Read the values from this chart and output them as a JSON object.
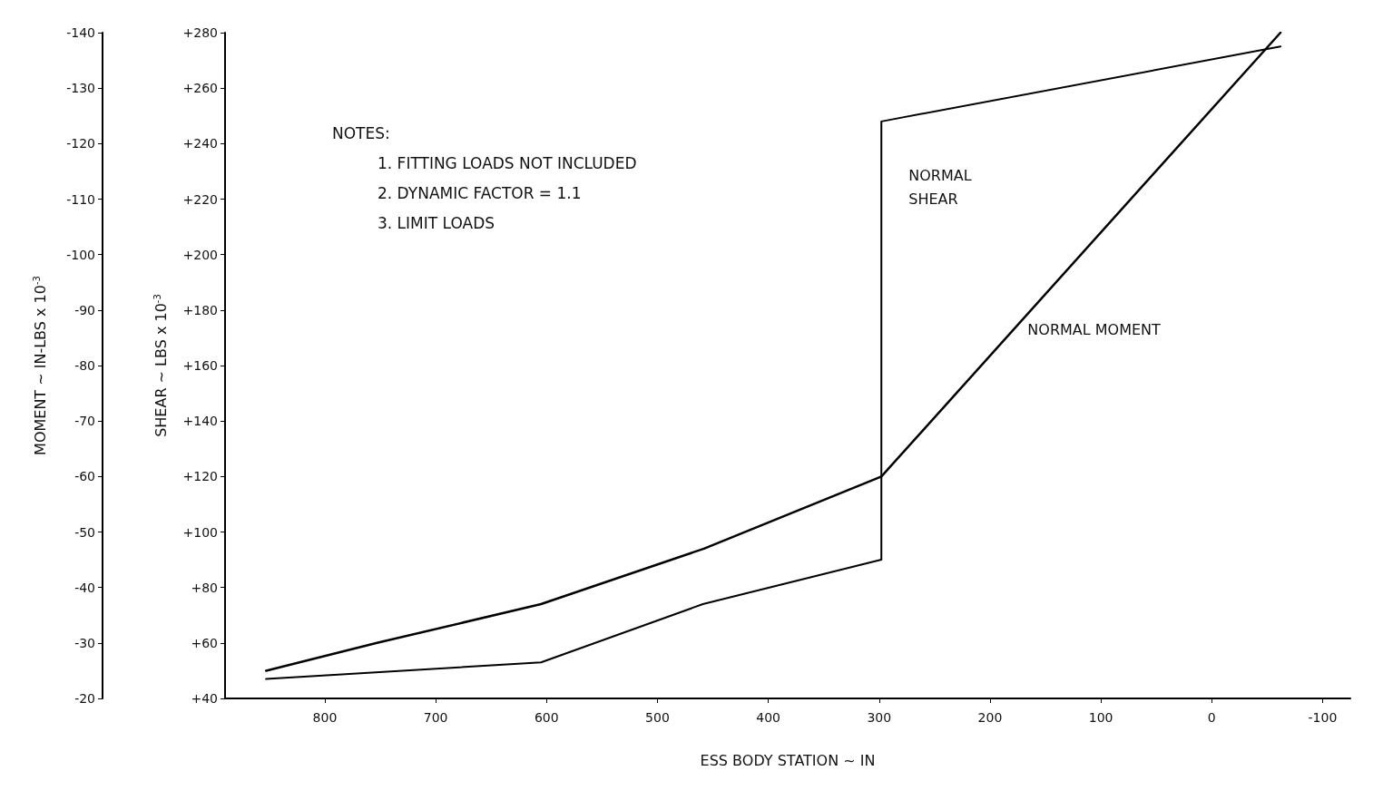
{
  "chart_data": {
    "type": "line",
    "xlabel": "ESS BODY STATION ~ IN",
    "ylabel": "SHEAR ~ LBS x 10$^{-3}$",
    "y2label": "MOMENT ~ IN-LBS x 10$^{-3}$",
    "annotations": [
      "NOTES:",
      "1. FITTING LOADS NOT INCLUDED",
      "2. DYNAMIC FACTOR = 1.1",
      "3. LIMIT LOADS"
    ],
    "series": [
      {
        "name": "NORMAL SHEAR",
        "color": "#000000",
        "x": [
          853,
          605,
          459,
          298,
          298,
          -62
        ],
        "values": [
          47,
          53,
          74,
          90,
          248,
          275
        ]
      },
      {
        "name": "NORMAL MOMENT",
        "color": "#000000",
        "axis": "y2",
        "x": [
          853,
          753,
          605,
          458,
          298,
          -62
        ],
        "values": [
          -25,
          -30,
          -37,
          -47,
          -60,
          -140
        ]
      }
    ],
    "xlim": [
      890,
      -125
    ],
    "xticks": [
      800,
      700,
      600,
      500,
      400,
      300,
      200,
      100,
      0,
      -100
    ],
    "ylim": [
      40,
      280
    ],
    "yticks": [
      {
        "value": 40,
        "label": "+40"
      },
      {
        "value": 60,
        "label": "+60"
      },
      {
        "value": 80,
        "label": "+80"
      },
      {
        "value": 100,
        "label": "+100"
      },
      {
        "value": 120,
        "label": "+120"
      },
      {
        "value": 140,
        "label": "+140"
      },
      {
        "value": 160,
        "label": "+160"
      },
      {
        "value": 180,
        "label": "+180"
      },
      {
        "value": 200,
        "label": "+200"
      },
      {
        "value": 220,
        "label": "+220"
      },
      {
        "value": 240,
        "label": "+240"
      },
      {
        "value": 260,
        "label": "+260"
      },
      {
        "value": 280,
        "label": "+280"
      }
    ],
    "y2lim": [
      -20,
      -140
    ],
    "y2ticks": [
      -20,
      -30,
      -40,
      -50,
      -60,
      -70,
      -80,
      -90,
      -100,
      -110,
      -120,
      -130,
      -140
    ],
    "grid": false,
    "legend": false,
    "marker": "none",
    "line_style": "solid"
  }
}
